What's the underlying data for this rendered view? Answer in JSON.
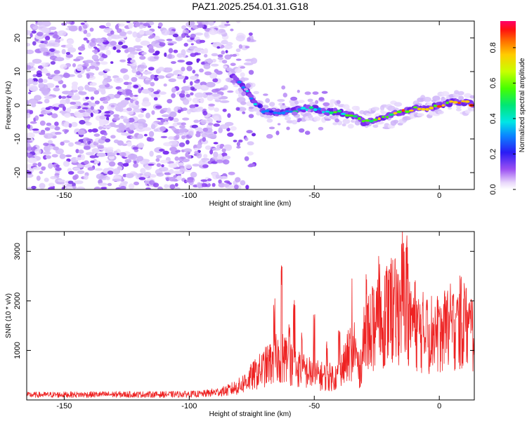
{
  "title": "PAZ1.2025.254.01.31.G18",
  "colors": {
    "snr_line": "#ee2222",
    "spectrum_main": "#7a2cf0",
    "spectrum_light": "#d9c4fb",
    "axis": "#000000"
  },
  "chart_data": [
    {
      "type": "heatmap",
      "name": "doppler-spectrum",
      "title": "PAZ1.2025.254.01.31.G18",
      "xlabel": "Height of straight line (km)",
      "ylabel": "Frequency (Hz)",
      "xlim": [
        -165,
        14
      ],
      "ylim": [
        -25,
        25
      ],
      "xticks": [
        -150,
        -100,
        -50,
        0
      ],
      "yticks": [
        -20,
        -10,
        0,
        10,
        20
      ],
      "noise_region": {
        "x_from": -165,
        "x_to": -80,
        "y_from": -25,
        "y_to": 25
      },
      "signal_ridge": {
        "x": [
          -82,
          -78,
          -74,
          -70,
          -65,
          -60,
          -55,
          -50,
          -45,
          -40,
          -35,
          -30,
          -25,
          -20,
          -15,
          -10,
          -5,
          0,
          5,
          10,
          14
        ],
        "freq": [
          9,
          5,
          1,
          -2,
          -2,
          -2,
          -1,
          -1,
          -2,
          -2,
          -3,
          -5,
          -4,
          -3,
          -2,
          -1,
          -1,
          0,
          1,
          1,
          0
        ]
      },
      "colorbar": {
        "label": "Normalized spectral amplitude",
        "range": [
          0.0,
          0.95
        ],
        "ticks": [
          "0.0",
          "0.2",
          "0.4",
          "0.6",
          "0.8"
        ]
      }
    },
    {
      "type": "line",
      "name": "snr-profile",
      "xlabel": "Height of straight line (km)",
      "ylabel": "SNR (10 * v/v)",
      "xlim": [
        -165,
        14
      ],
      "ylim": [
        0,
        3400
      ],
      "xticks": [
        -150,
        -100,
        -50,
        0
      ],
      "yticks": [
        1000,
        2000,
        3000
      ],
      "series": [
        {
          "name": "SNR",
          "envelope_x": [
            -165,
            -150,
            -130,
            -110,
            -95,
            -85,
            -80,
            -75,
            -70,
            -65,
            -62,
            -60,
            -55,
            -50,
            -45,
            -40,
            -36,
            -34,
            -32,
            -30,
            -28,
            -25,
            -22,
            -20,
            -18,
            -16,
            -14,
            -12,
            -10,
            -8,
            -5,
            -2,
            0,
            3,
            6,
            9,
            12,
            14
          ],
          "envelope_y": [
            110,
            115,
            120,
            120,
            130,
            200,
            300,
            500,
            700,
            900,
            950,
            800,
            650,
            550,
            500,
            520,
            1000,
            1200,
            600,
            1300,
            1500,
            1600,
            1800,
            2000,
            1900,
            2000,
            2300,
            1900,
            1700,
            1500,
            1450,
            1500,
            1400,
            1550,
            1600,
            1700,
            1500,
            1550
          ],
          "spike_x": [
            -66,
            -63,
            -60,
            -58,
            -55,
            -50,
            -45,
            -40,
            -35,
            -29,
            -27,
            -24,
            -20,
            -18,
            -15,
            -13,
            -11,
            -5,
            0,
            3,
            7,
            10,
            13
          ],
          "spike_y": [
            2000,
            2600,
            1500,
            2000,
            1400,
            1700,
            1200,
            1400,
            2400,
            2500,
            2100,
            2800,
            2600,
            2200,
            3400,
            3300,
            2000,
            2100,
            1800,
            2100,
            1950,
            2300,
            2000
          ]
        }
      ]
    }
  ]
}
